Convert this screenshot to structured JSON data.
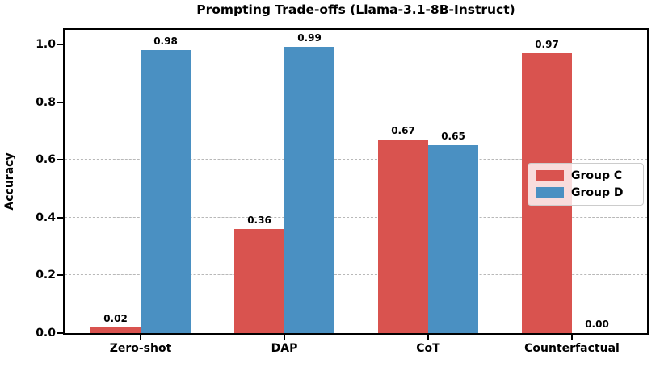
{
  "chart_data": {
    "type": "bar",
    "title": "Prompting Trade-offs (Llama-3.1-8B-Instruct)",
    "xlabel": "",
    "ylabel": "Accuracy",
    "categories": [
      "Zero-shot",
      "DAP",
      "CoT",
      "Counterfactual"
    ],
    "series": [
      {
        "name": "Group C",
        "color": "#d9534f",
        "values": [
          0.02,
          0.36,
          0.67,
          0.97
        ],
        "labels": [
          "0.02",
          "0.36",
          "0.67",
          "0.97"
        ]
      },
      {
        "name": "Group D",
        "color": "#4a90c2",
        "values": [
          0.98,
          0.99,
          0.65,
          0.0
        ],
        "labels": [
          "0.98",
          "0.99",
          "0.65",
          "0.00"
        ]
      }
    ],
    "ylim": [
      0.0,
      1.05
    ],
    "yticks": [
      0.0,
      0.2,
      0.4,
      0.6,
      0.8,
      1.0
    ],
    "ytick_labels": [
      "0.0",
      "0.2",
      "0.4",
      "0.6",
      "0.8",
      "1.0"
    ],
    "grid": "horizontal-dashed",
    "grid_color": "#b8b8b8",
    "legend": {
      "position": "center-right",
      "entries": [
        "Group C",
        "Group D"
      ]
    }
  }
}
